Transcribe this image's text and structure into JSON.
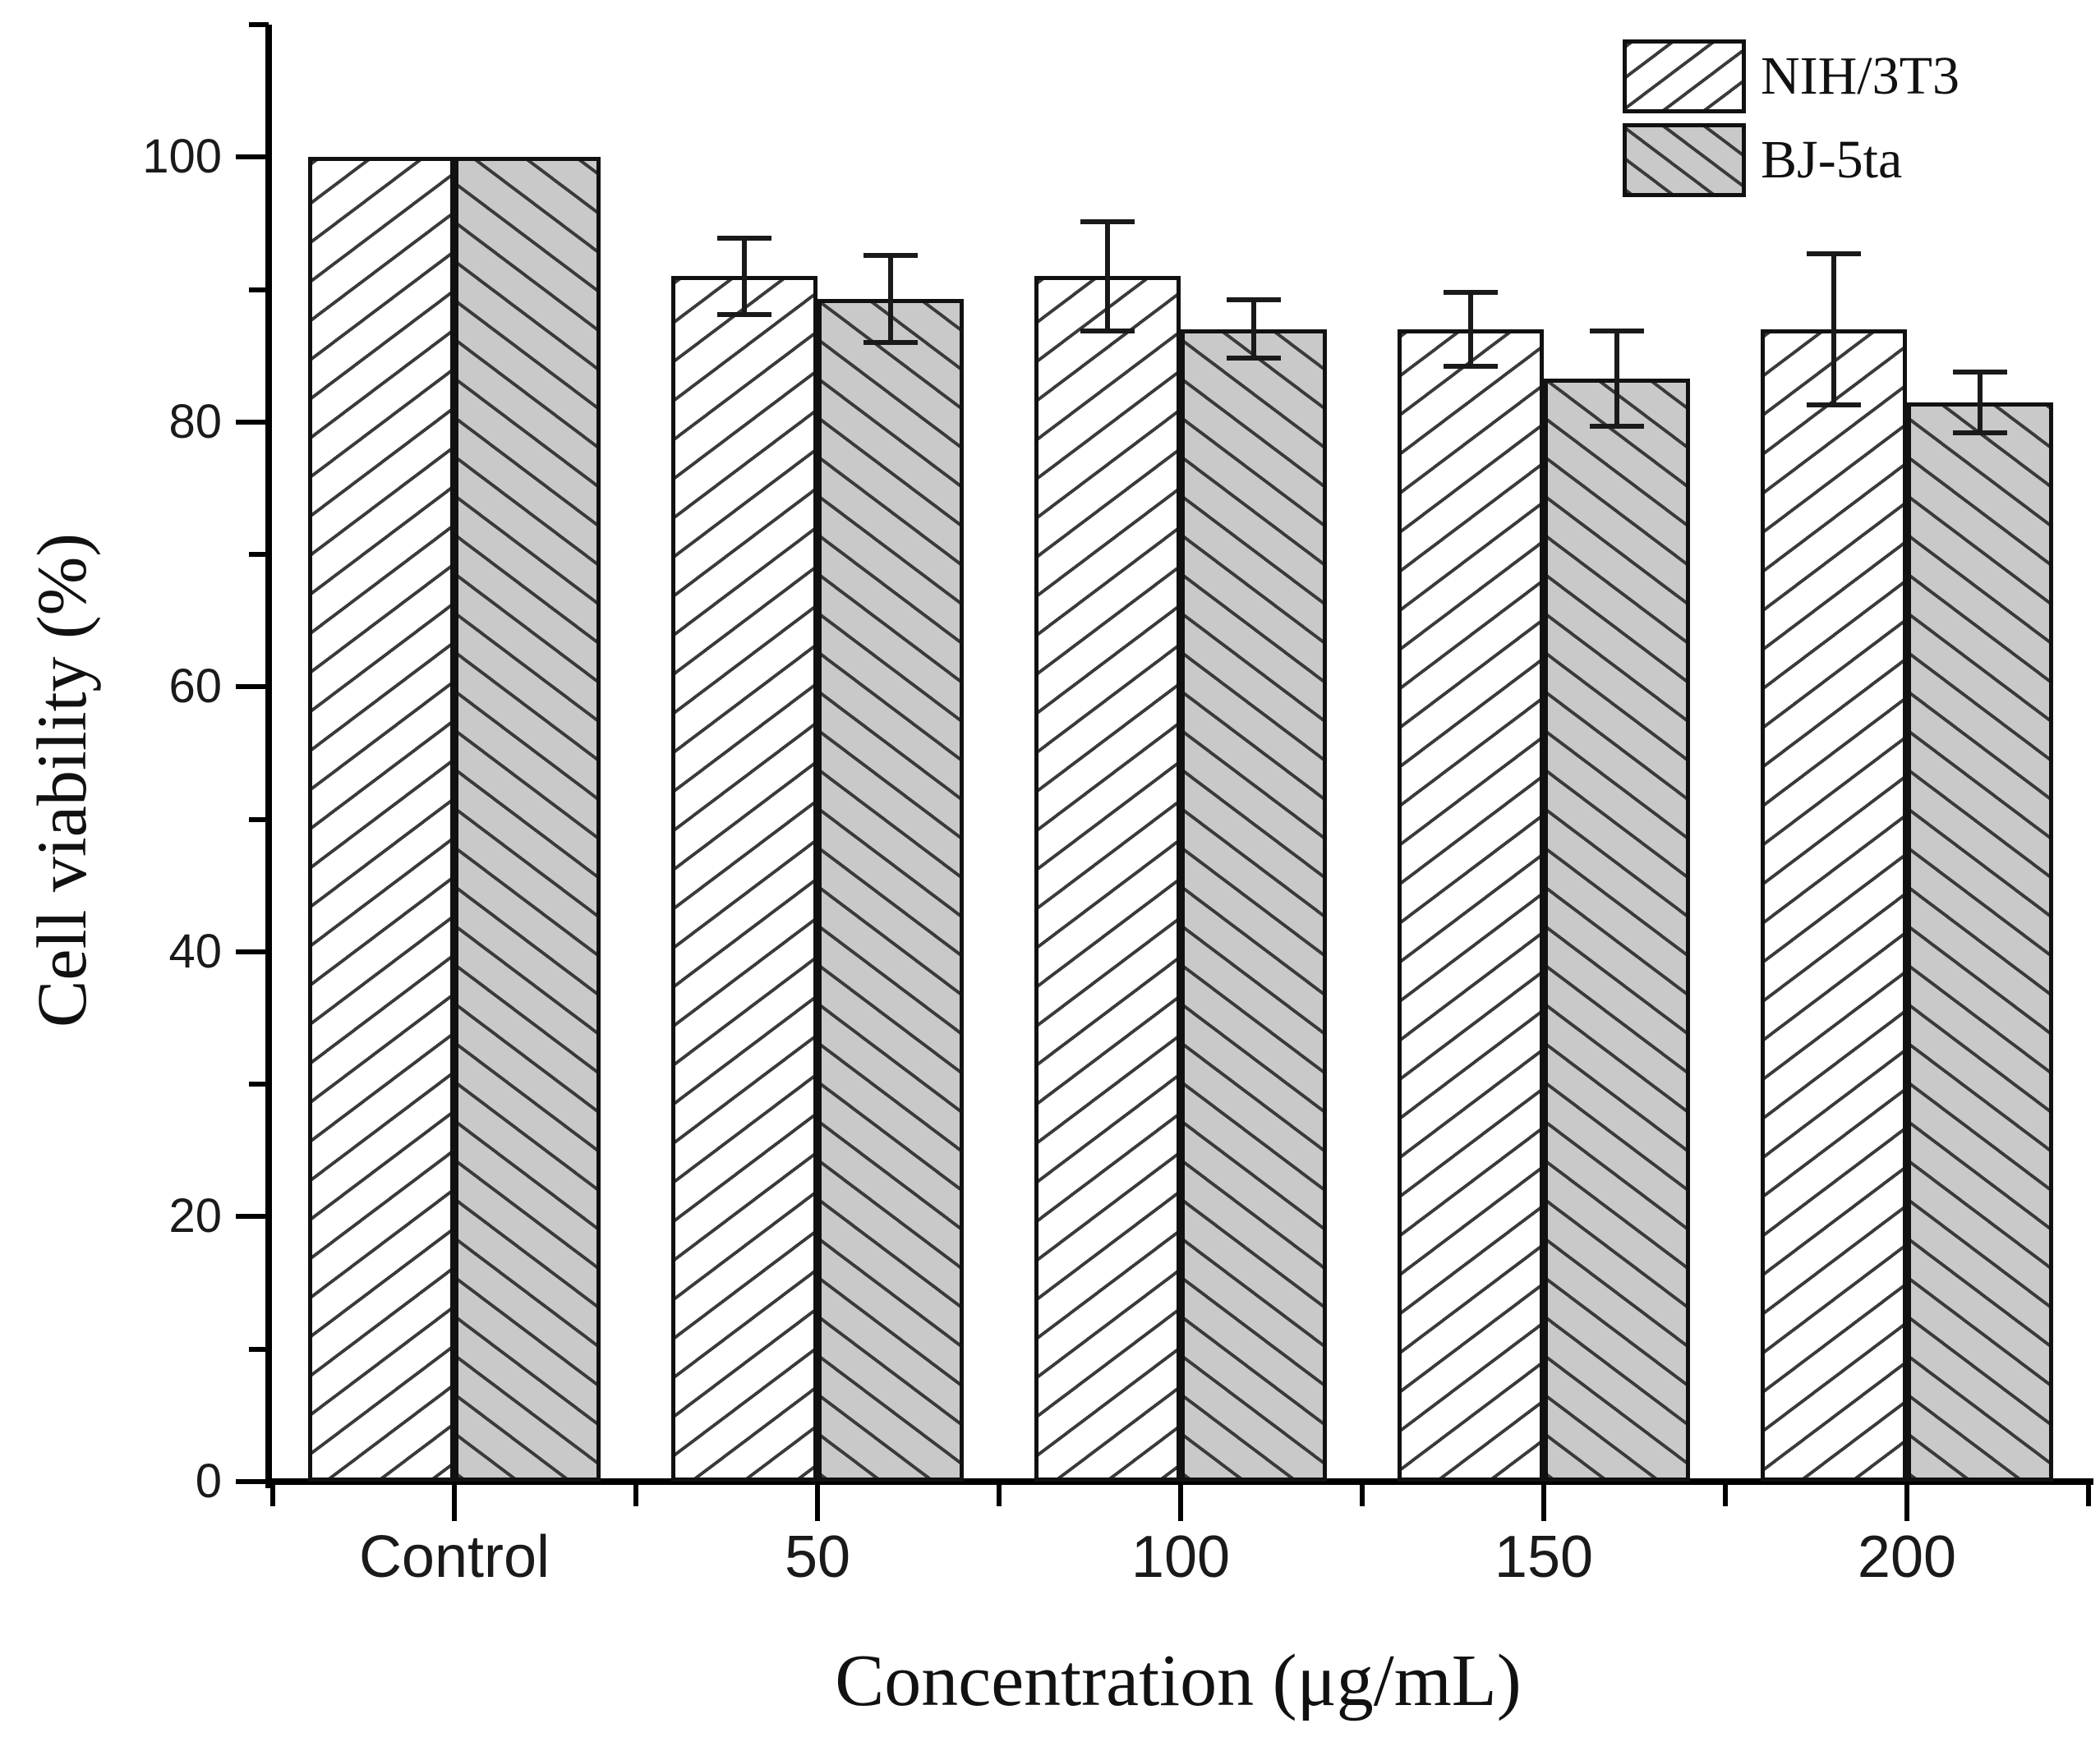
{
  "figure": {
    "background": "#ffffff",
    "axis_color": "#000000",
    "hatch_color": "#3a3a3a",
    "error_bar_color": "#1a1a1a"
  },
  "chart_data": {
    "type": "bar",
    "title": "",
    "xlabel": "Concentration (μg/mL)",
    "ylabel": "Cell viability (%)",
    "categories": [
      "Control",
      "50",
      "100",
      "150",
      "200"
    ],
    "series": [
      {
        "name": "NIH/3T3",
        "fill": "#ffffff",
        "hatch": "forward-slash",
        "values": [
          100,
          91,
          91,
          87,
          87
        ],
        "errors": [
          0,
          2.9,
          4.1,
          2.8,
          5.7
        ]
      },
      {
        "name": "BJ-5ta",
        "fill": "#c9c9c9",
        "hatch": "back-slash",
        "values": [
          100,
          89.3,
          87,
          83.3,
          81.5
        ],
        "errors": [
          0,
          3.3,
          2.2,
          3.6,
          2.3
        ]
      }
    ],
    "ylim": [
      0,
      110
    ],
    "yticks": [
      0,
      20,
      40,
      60,
      80,
      100
    ],
    "y_minor_step": 10,
    "grid": false,
    "legend_position": "top-right"
  }
}
